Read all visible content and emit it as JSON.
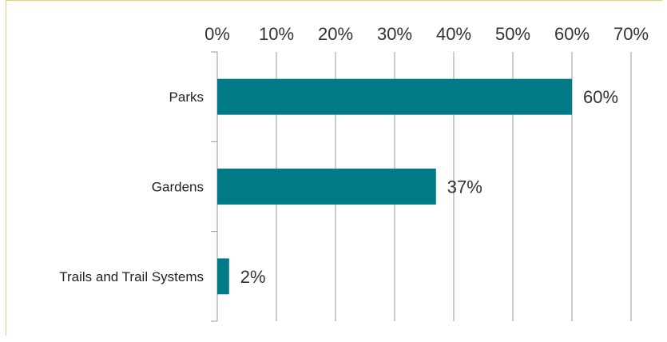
{
  "chart_data": {
    "type": "bar",
    "orientation": "horizontal",
    "categories": [
      "Parks",
      "Gardens",
      "Trails and Trail Systems"
    ],
    "values": [
      60,
      37,
      2
    ],
    "value_labels": [
      "60%",
      "37%",
      "2%"
    ],
    "title": "",
    "xlabel": "",
    "ylabel": "",
    "xlim": [
      0,
      70
    ],
    "x_ticks": [
      0,
      10,
      20,
      30,
      40,
      50,
      60,
      70
    ],
    "x_tick_labels": [
      "0%",
      "10%",
      "20%",
      "30%",
      "40%",
      "50%",
      "60%",
      "70%"
    ],
    "x_axis_position": "top",
    "grid": true,
    "legend": "none",
    "bar_color": "#007a87",
    "grid_color": "#999999",
    "frame_color": "#e8d070"
  }
}
